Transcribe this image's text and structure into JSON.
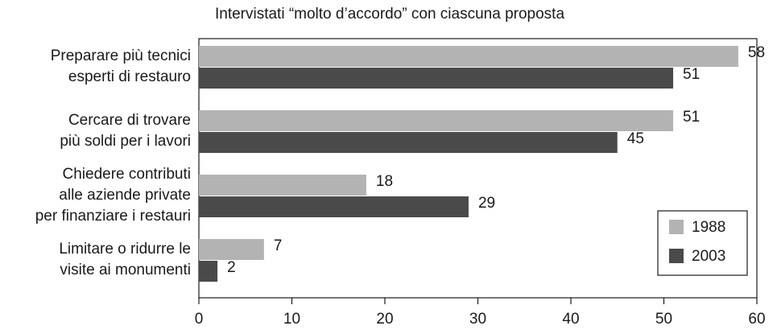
{
  "chart_data": {
    "type": "bar",
    "orientation": "horizontal",
    "title": "Intervistati “molto d’accordo” con ciascuna proposta",
    "categories": [
      [
        "Preparare più tecnici",
        "esperti di restauro"
      ],
      [
        "Cercare di trovare",
        "più soldi per i lavori"
      ],
      [
        "Chiedere contributi",
        "alle aziende private",
        "per finanziare i restauri"
      ],
      [
        "Limitare o ridurre le",
        "visite ai monumenti"
      ]
    ],
    "series": [
      {
        "name": "1988",
        "color": "#b3b3b3",
        "values": [
          58,
          51,
          18,
          7
        ]
      },
      {
        "name": "2003",
        "color": "#4a4a4a",
        "values": [
          51,
          45,
          29,
          2
        ]
      }
    ],
    "xlim": [
      0,
      60
    ],
    "xticks": [
      0,
      10,
      20,
      30,
      40,
      50,
      60
    ],
    "legend": "lower right"
  }
}
